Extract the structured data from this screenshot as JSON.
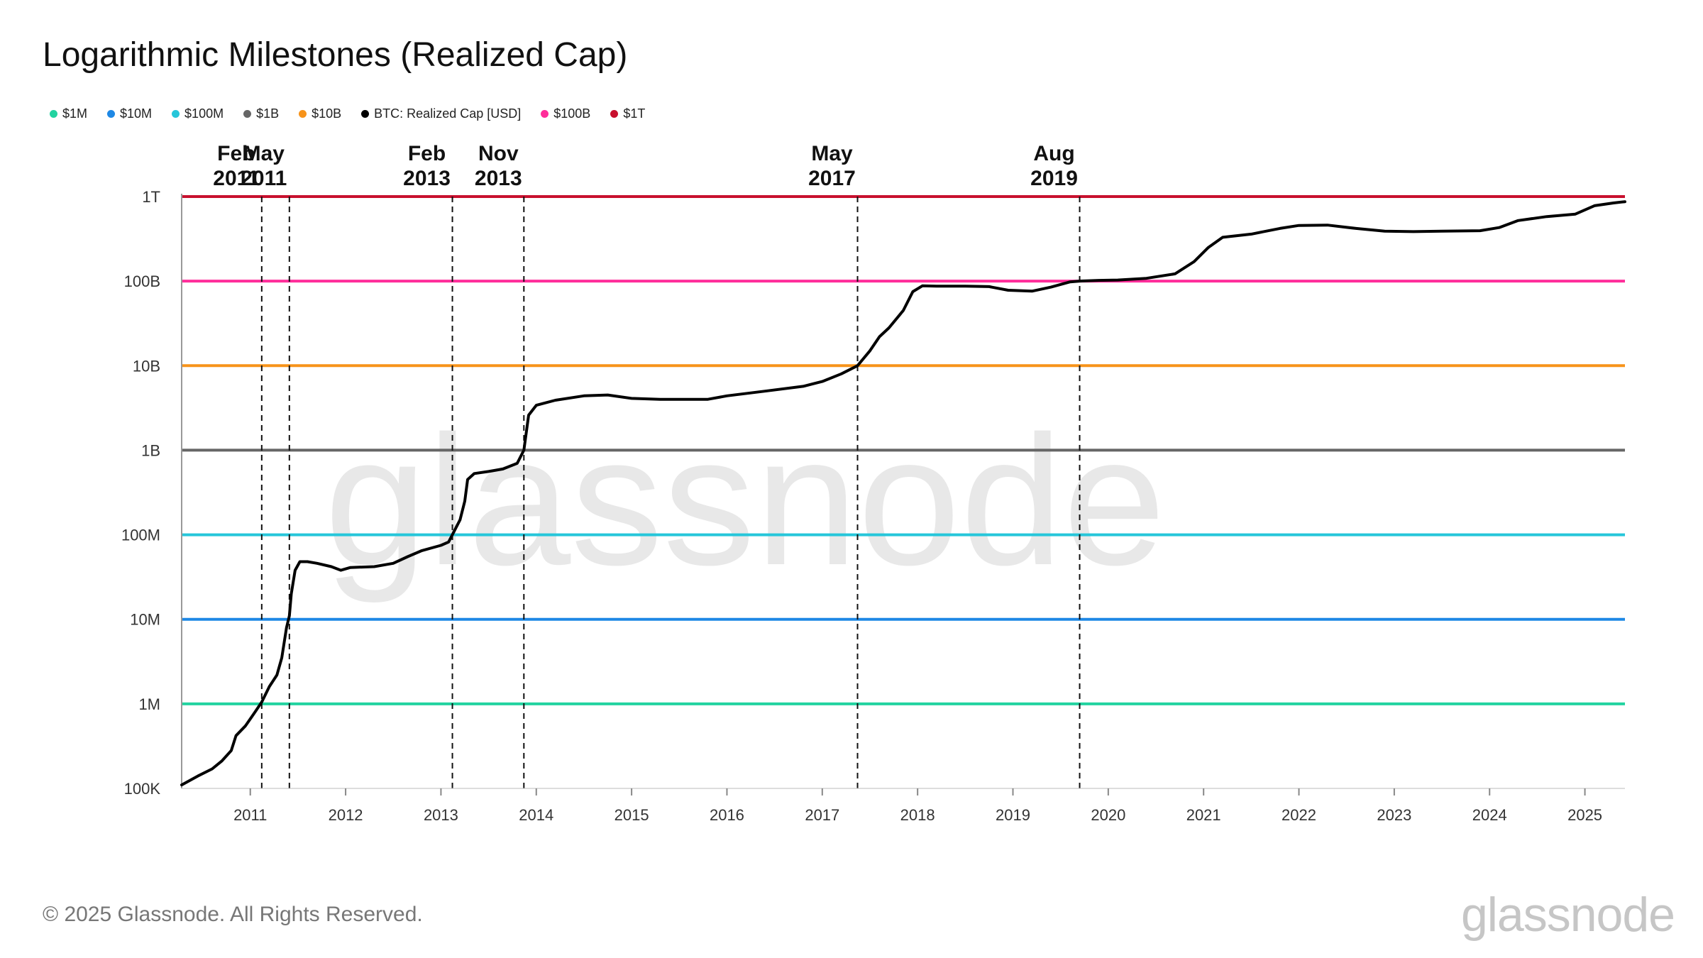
{
  "title": "Logarithmic Milestones (Realized Cap)",
  "legend": [
    {
      "label": "$1M",
      "color": "#22d3a0"
    },
    {
      "label": "$10M",
      "color": "#1e88e5"
    },
    {
      "label": "$100M",
      "color": "#26c6da"
    },
    {
      "label": "$1B",
      "color": "#666666"
    },
    {
      "label": "$10B",
      "color": "#f7931a"
    },
    {
      "label": "BTC: Realized Cap [USD]",
      "color": "#000000"
    },
    {
      "label": "$100B",
      "color": "#ff2d9a"
    },
    {
      "label": "$1T",
      "color": "#c8102e"
    }
  ],
  "footer": "© 2025 Glassnode. All Rights Reserved.",
  "brand": "glassnode",
  "watermark": "glassnode",
  "chart_data": {
    "type": "line",
    "title": "Logarithmic Milestones (Realized Cap)",
    "y_scale": "log",
    "ylim": [
      100000,
      1000000000000
    ],
    "xlim": [
      2010.28,
      2025.42
    ],
    "y_ticks": [
      {
        "value": 100000,
        "label": "100K"
      },
      {
        "value": 1000000,
        "label": "1M"
      },
      {
        "value": 10000000,
        "label": "10M"
      },
      {
        "value": 100000000,
        "label": "100M"
      },
      {
        "value": 1000000000,
        "label": "1B"
      },
      {
        "value": 10000000000,
        "label": "10B"
      },
      {
        "value": 100000000000,
        "label": "100B"
      },
      {
        "value": 1000000000000,
        "label": "1T"
      }
    ],
    "x_ticks": [
      "2011",
      "2012",
      "2013",
      "2014",
      "2015",
      "2016",
      "2017",
      "2018",
      "2019",
      "2020",
      "2021",
      "2022",
      "2023",
      "2024",
      "2025"
    ],
    "thresholds": [
      {
        "name": "$1M",
        "value": 1000000,
        "color": "#22d3a0"
      },
      {
        "name": "$10M",
        "value": 10000000,
        "color": "#1e88e5"
      },
      {
        "name": "$100M",
        "value": 100000000,
        "color": "#26c6da"
      },
      {
        "name": "$1B",
        "value": 1000000000,
        "color": "#666666"
      },
      {
        "name": "$10B",
        "value": 10000000000,
        "color": "#f7931a"
      },
      {
        "name": "$100B",
        "value": 100000000000,
        "color": "#ff2d9a"
      },
      {
        "name": "$1T",
        "value": 1000000000000,
        "color": "#c8102e"
      }
    ],
    "annotations": [
      {
        "x": 2011.12,
        "line1": "Feb",
        "line2": "2011"
      },
      {
        "x": 2011.41,
        "line1": "May",
        "line2": "2011"
      },
      {
        "x": 2013.12,
        "line1": "Feb",
        "line2": "2013"
      },
      {
        "x": 2013.87,
        "line1": "Nov",
        "line2": "2013"
      },
      {
        "x": 2017.37,
        "line1": "May",
        "line2": "2017"
      },
      {
        "x": 2019.7,
        "line1": "Aug",
        "line2": "2019"
      }
    ],
    "series": [
      {
        "name": "BTC: Realized Cap [USD]",
        "color": "#000000",
        "points": [
          [
            2010.28,
            110000
          ],
          [
            2010.45,
            140000
          ],
          [
            2010.6,
            170000
          ],
          [
            2010.7,
            210000
          ],
          [
            2010.8,
            280000
          ],
          [
            2010.85,
            420000
          ],
          [
            2010.95,
            550000
          ],
          [
            2011.05,
            800000
          ],
          [
            2011.12,
            1050000
          ],
          [
            2011.2,
            1600000
          ],
          [
            2011.28,
            2200000
          ],
          [
            2011.33,
            3500000
          ],
          [
            2011.38,
            8000000
          ],
          [
            2011.41,
            11000000
          ],
          [
            2011.43,
            20000000
          ],
          [
            2011.47,
            38000000
          ],
          [
            2011.52,
            48000000
          ],
          [
            2011.6,
            48000000
          ],
          [
            2011.7,
            46000000
          ],
          [
            2011.85,
            42000000
          ],
          [
            2011.95,
            38000000
          ],
          [
            2012.05,
            41000000
          ],
          [
            2012.3,
            42000000
          ],
          [
            2012.5,
            46000000
          ],
          [
            2012.65,
            55000000
          ],
          [
            2012.8,
            65000000
          ],
          [
            2013.0,
            75000000
          ],
          [
            2013.08,
            82000000
          ],
          [
            2013.12,
            100000000
          ],
          [
            2013.2,
            150000000
          ],
          [
            2013.25,
            250000000
          ],
          [
            2013.28,
            450000000
          ],
          [
            2013.35,
            530000000
          ],
          [
            2013.5,
            560000000
          ],
          [
            2013.65,
            600000000
          ],
          [
            2013.8,
            700000000
          ],
          [
            2013.87,
            1000000000
          ],
          [
            2013.92,
            2600000000
          ],
          [
            2014.0,
            3400000000
          ],
          [
            2014.2,
            3900000000
          ],
          [
            2014.5,
            4400000000
          ],
          [
            2014.75,
            4500000000
          ],
          [
            2015.0,
            4100000000
          ],
          [
            2015.3,
            4000000000
          ],
          [
            2015.8,
            4000000000
          ],
          [
            2016.0,
            4400000000
          ],
          [
            2016.4,
            5000000000
          ],
          [
            2016.8,
            5700000000
          ],
          [
            2017.0,
            6500000000
          ],
          [
            2017.2,
            8000000000
          ],
          [
            2017.37,
            10000000000
          ],
          [
            2017.5,
            15000000000
          ],
          [
            2017.6,
            22000000000
          ],
          [
            2017.7,
            28000000000
          ],
          [
            2017.85,
            45000000000
          ],
          [
            2017.95,
            75000000000
          ],
          [
            2018.05,
            88000000000
          ],
          [
            2018.2,
            87000000000
          ],
          [
            2018.5,
            87000000000
          ],
          [
            2018.75,
            86000000000
          ],
          [
            2018.95,
            78000000000
          ],
          [
            2019.2,
            76000000000
          ],
          [
            2019.4,
            85000000000
          ],
          [
            2019.6,
            98000000000
          ],
          [
            2019.7,
            100000000000
          ],
          [
            2019.9,
            102000000000
          ],
          [
            2020.1,
            103000000000
          ],
          [
            2020.4,
            108000000000
          ],
          [
            2020.7,
            122000000000
          ],
          [
            2020.9,
            170000000000
          ],
          [
            2021.05,
            250000000000
          ],
          [
            2021.2,
            330000000000
          ],
          [
            2021.5,
            360000000000
          ],
          [
            2021.8,
            420000000000
          ],
          [
            2022.0,
            455000000000
          ],
          [
            2022.3,
            460000000000
          ],
          [
            2022.6,
            420000000000
          ],
          [
            2022.9,
            390000000000
          ],
          [
            2023.2,
            385000000000
          ],
          [
            2023.5,
            390000000000
          ],
          [
            2023.9,
            395000000000
          ],
          [
            2024.1,
            430000000000
          ],
          [
            2024.3,
            520000000000
          ],
          [
            2024.6,
            580000000000
          ],
          [
            2024.9,
            620000000000
          ],
          [
            2025.1,
            780000000000
          ],
          [
            2025.3,
            840000000000
          ],
          [
            2025.42,
            870000000000
          ]
        ]
      }
    ]
  }
}
